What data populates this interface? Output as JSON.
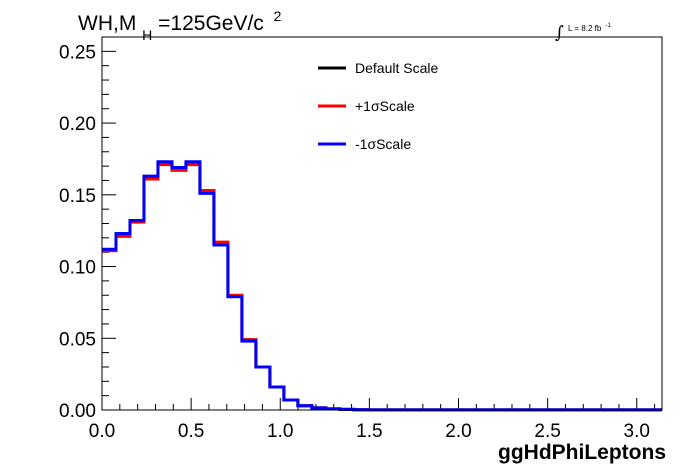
{
  "header": {
    "process": "WH,M",
    "subscript": "H",
    "mass_text": "=125GeV/c",
    "superscript": "2"
  },
  "lumi": {
    "integral_symbol": "∫",
    "text": "L = 8.2 fb",
    "exponent": "-1"
  },
  "colors": {
    "default": "#000000",
    "plus": "#ff0000",
    "minus": "#0000ff",
    "frame": "#000000",
    "background": "#ffffff"
  },
  "chart_data": {
    "type": "line",
    "style": "step-histogram",
    "title": "",
    "xlabel": "ggHdPhiLeptons",
    "ylabel": "",
    "xlim": [
      0,
      3.14159
    ],
    "ylim": [
      0,
      0.26
    ],
    "bin_width": 0.0785,
    "x_ticks": [
      0.0,
      0.5,
      1.0,
      1.5,
      2.0,
      2.5,
      3.0
    ],
    "x_tick_labels": [
      "0.0",
      "0.5",
      "1.0",
      "1.5",
      "2.0",
      "2.5",
      "3.0"
    ],
    "y_ticks": [
      0.0,
      0.05,
      0.1,
      0.15,
      0.2,
      0.25
    ],
    "y_tick_labels": [
      "0.00",
      "0.05",
      "0.10",
      "0.15",
      "0.20",
      "0.25"
    ],
    "legend_position": "top-center",
    "grid": false,
    "series": [
      {
        "name": "Default Scale",
        "color": "#000000",
        "values": [
          0.112,
          0.122,
          0.132,
          0.162,
          0.172,
          0.168,
          0.172,
          0.152,
          0.116,
          0.079,
          0.049,
          0.03,
          0.016,
          0.007,
          0.003,
          0.0015,
          0.0008,
          0.0004,
          0.0002,
          0.0001,
          0.0001,
          0.0001,
          0.0001,
          0.0001,
          0.0001,
          0.0001,
          0.0001,
          0.0001,
          0.0001,
          0.0001,
          0.0001,
          0.0001,
          0.0001,
          0.0001,
          0.0001,
          0.0001,
          0.0001,
          0.0001,
          0.0001,
          0.0001
        ]
      },
      {
        "name": "+1σScale",
        "color": "#ff0000",
        "values": [
          0.111,
          0.121,
          0.131,
          0.161,
          0.171,
          0.167,
          0.171,
          0.153,
          0.117,
          0.08,
          0.049,
          0.03,
          0.016,
          0.007,
          0.003,
          0.0015,
          0.0008,
          0.0004,
          0.0002,
          0.0001,
          0.0001,
          0.0001,
          0.0001,
          0.0001,
          0.0001,
          0.0001,
          0.0001,
          0.0001,
          0.0001,
          0.0001,
          0.0001,
          0.0001,
          0.0001,
          0.0001,
          0.0001,
          0.0001,
          0.0001,
          0.0001,
          0.0001,
          0.0001
        ]
      },
      {
        "name": "-1σScale",
        "color": "#0000ff",
        "values": [
          0.112,
          0.123,
          0.132,
          0.163,
          0.173,
          0.169,
          0.173,
          0.151,
          0.115,
          0.079,
          0.048,
          0.03,
          0.016,
          0.007,
          0.003,
          0.0015,
          0.0008,
          0.0004,
          0.0002,
          0.0001,
          0.0001,
          0.0001,
          0.0001,
          0.0001,
          0.0001,
          0.0001,
          0.0001,
          0.0001,
          0.0001,
          0.0001,
          0.0001,
          0.0001,
          0.0001,
          0.0001,
          0.0001,
          0.0001,
          0.0001,
          0.0001,
          0.0001,
          0.0001
        ]
      }
    ]
  }
}
